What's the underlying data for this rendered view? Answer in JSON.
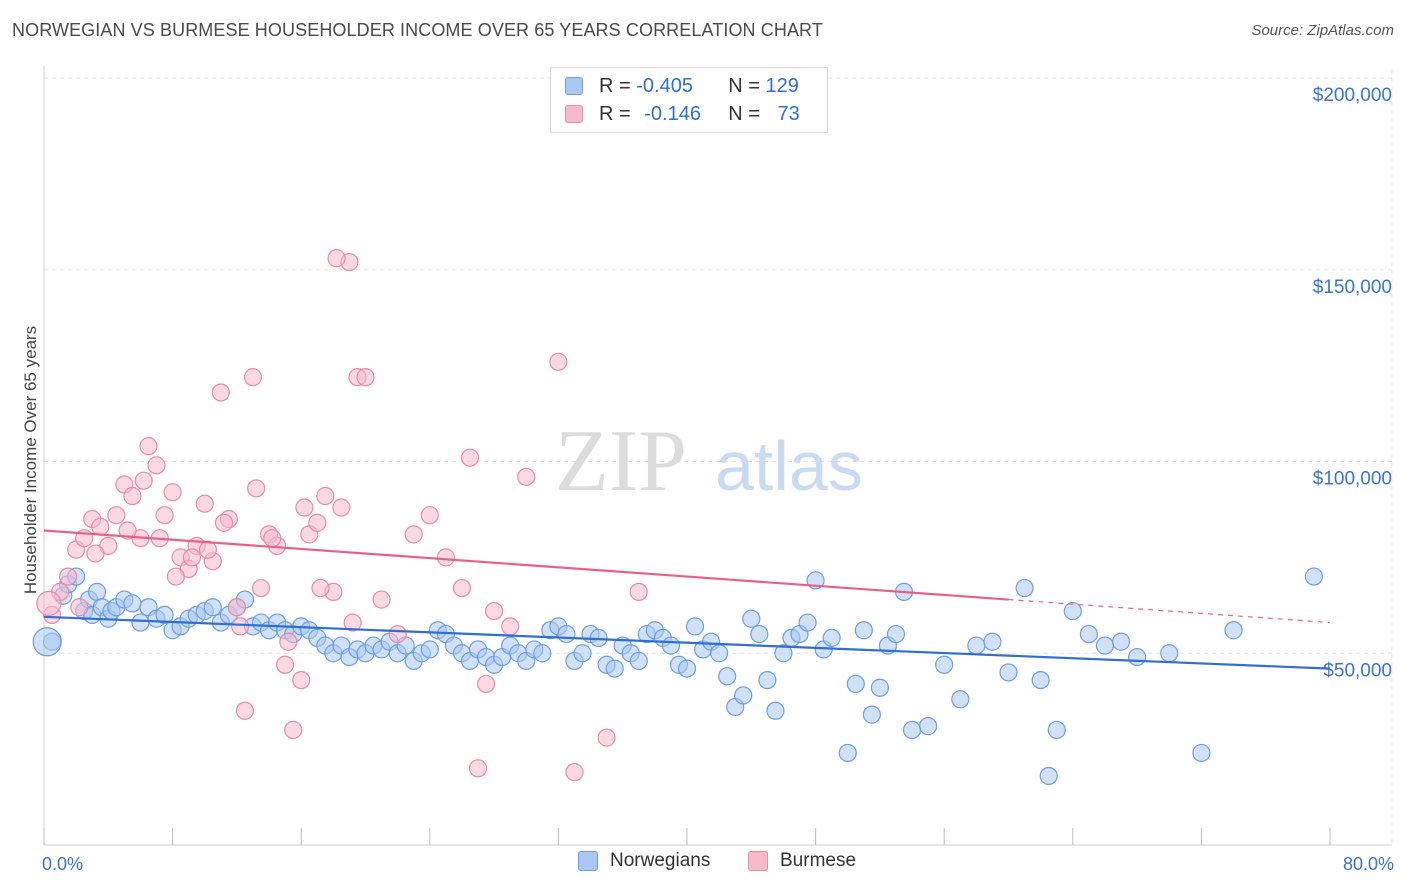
{
  "header": {
    "title": "NORWEGIAN VS BURMESE HOUSEHOLDER INCOME OVER 65 YEARS CORRELATION CHART",
    "source": "Source: ZipAtlas.com"
  },
  "watermark": {
    "zip": "ZIP",
    "atlas": "atlas"
  },
  "legend_top": {
    "rows": [
      {
        "r_label": "R = ",
        "r_value": "-0.405",
        "n_label": "N = ",
        "n_value": "129"
      },
      {
        "r_label": "R = ",
        "r_value": "-0.146",
        "n_label": "N = ",
        "n_value": "73"
      }
    ]
  },
  "legend_bottom": {
    "items": [
      "Norwegians",
      "Burmese"
    ]
  },
  "colors": {
    "blue_fill": "#a9c8f2",
    "blue_stroke": "#6d9fe0",
    "blue_line": "#2f6fd0",
    "pink_fill": "#f7b9cc",
    "pink_stroke": "#e98aa8",
    "pink_line": "#e8608a",
    "axis_text": "#3b73cf",
    "grid": "#e2e2e2"
  },
  "chart_data": {
    "type": "scatter",
    "title": "NORWEGIAN VS BURMESE HOUSEHOLDER INCOME OVER 65 YEARS CORRELATION CHART",
    "xlabel": "",
    "ylabel": "Householder Income Over 65 years",
    "xlim": [
      0,
      80
    ],
    "ylim": [
      0,
      210000
    ],
    "x_tick_labels": [
      "0.0%",
      "80.0%"
    ],
    "y_ticks": [
      50000,
      100000,
      150000,
      200000
    ],
    "y_tick_labels": [
      "$50,000",
      "$100,000",
      "$150,000",
      "$200,000"
    ],
    "grid": true,
    "legend_position": "top-center",
    "series": [
      {
        "name": "Norwegians",
        "color": "#6d9fe0",
        "trend": {
          "x": [
            0,
            80
          ],
          "y": [
            59500,
            46000
          ]
        },
        "points": [
          [
            0.5,
            53000
          ],
          [
            1.2,
            65000
          ],
          [
            1.5,
            68000
          ],
          [
            2.0,
            70000
          ],
          [
            2.5,
            61000
          ],
          [
            2.8,
            64000
          ],
          [
            3.0,
            60000
          ],
          [
            3.3,
            66000
          ],
          [
            3.6,
            62000
          ],
          [
            4.0,
            59000
          ],
          [
            4.2,
            61000
          ],
          [
            4.5,
            62000
          ],
          [
            5.0,
            64000
          ],
          [
            5.5,
            63000
          ],
          [
            6.0,
            58000
          ],
          [
            6.5,
            62000
          ],
          [
            7.0,
            59000
          ],
          [
            7.5,
            60000
          ],
          [
            8.0,
            56000
          ],
          [
            8.5,
            57000
          ],
          [
            9.0,
            59000
          ],
          [
            9.5,
            60000
          ],
          [
            10.0,
            61000
          ],
          [
            10.5,
            62000
          ],
          [
            11.0,
            58000
          ],
          [
            11.5,
            60000
          ],
          [
            12.0,
            62000
          ],
          [
            12.5,
            64000
          ],
          [
            13.0,
            57000
          ],
          [
            13.5,
            58000
          ],
          [
            14.0,
            56000
          ],
          [
            14.5,
            58000
          ],
          [
            15.0,
            56000
          ],
          [
            15.5,
            55000
          ],
          [
            16.0,
            57000
          ],
          [
            16.5,
            56000
          ],
          [
            17.0,
            54000
          ],
          [
            17.5,
            52000
          ],
          [
            18.0,
            50000
          ],
          [
            18.5,
            52000
          ],
          [
            19.0,
            49000
          ],
          [
            19.5,
            51000
          ],
          [
            20.0,
            50000
          ],
          [
            20.5,
            52000
          ],
          [
            21.0,
            51000
          ],
          [
            21.5,
            53000
          ],
          [
            22.0,
            50000
          ],
          [
            22.5,
            52000
          ],
          [
            23.0,
            48000
          ],
          [
            23.5,
            50000
          ],
          [
            24.0,
            51000
          ],
          [
            24.5,
            56000
          ],
          [
            25.0,
            55000
          ],
          [
            25.5,
            52000
          ],
          [
            26.0,
            50000
          ],
          [
            26.5,
            48000
          ],
          [
            27.0,
            51000
          ],
          [
            27.5,
            49000
          ],
          [
            28.0,
            47000
          ],
          [
            28.5,
            49000
          ],
          [
            29.0,
            52000
          ],
          [
            29.5,
            50000
          ],
          [
            30.0,
            48000
          ],
          [
            30.5,
            51000
          ],
          [
            31.0,
            50000
          ],
          [
            31.5,
            56000
          ],
          [
            32.0,
            57000
          ],
          [
            32.5,
            55000
          ],
          [
            33.0,
            48000
          ],
          [
            33.5,
            50000
          ],
          [
            34.0,
            55000
          ],
          [
            34.5,
            54000
          ],
          [
            35.0,
            47000
          ],
          [
            35.5,
            46000
          ],
          [
            36.0,
            52000
          ],
          [
            36.5,
            50000
          ],
          [
            37.0,
            48000
          ],
          [
            37.5,
            55000
          ],
          [
            38.0,
            56000
          ],
          [
            38.5,
            54000
          ],
          [
            39.0,
            52000
          ],
          [
            39.5,
            47000
          ],
          [
            40.0,
            46000
          ],
          [
            40.5,
            57000
          ],
          [
            41.0,
            51000
          ],
          [
            41.5,
            53000
          ],
          [
            42.0,
            50000
          ],
          [
            42.5,
            44000
          ],
          [
            43.0,
            36000
          ],
          [
            43.5,
            39000
          ],
          [
            44.0,
            59000
          ],
          [
            44.5,
            55000
          ],
          [
            45.0,
            43000
          ],
          [
            45.5,
            35000
          ],
          [
            46.0,
            50000
          ],
          [
            46.5,
            54000
          ],
          [
            47.0,
            55000
          ],
          [
            47.5,
            58000
          ],
          [
            48.0,
            69000
          ],
          [
            48.5,
            51000
          ],
          [
            49.0,
            54000
          ],
          [
            50.0,
            24000
          ],
          [
            50.5,
            42000
          ],
          [
            51.0,
            56000
          ],
          [
            51.5,
            34000
          ],
          [
            52.0,
            41000
          ],
          [
            52.5,
            52000
          ],
          [
            53.0,
            55000
          ],
          [
            53.5,
            66000
          ],
          [
            54.0,
            30000
          ],
          [
            55.0,
            31000
          ],
          [
            56.0,
            47000
          ],
          [
            57.0,
            38000
          ],
          [
            58.0,
            52000
          ],
          [
            59.0,
            53000
          ],
          [
            60.0,
            45000
          ],
          [
            61.0,
            67000
          ],
          [
            62.0,
            43000
          ],
          [
            62.5,
            18000
          ],
          [
            63.0,
            30000
          ],
          [
            64.0,
            61000
          ],
          [
            65.0,
            55000
          ],
          [
            66.0,
            52000
          ],
          [
            67.0,
            53000
          ],
          [
            68.0,
            49000
          ],
          [
            70.0,
            50000
          ],
          [
            72.0,
            24000
          ],
          [
            74.0,
            56000
          ],
          [
            79.0,
            70000
          ]
        ]
      },
      {
        "name": "Burmese",
        "color": "#e98aa8",
        "trend": {
          "x": [
            0,
            60
          ],
          "y": [
            82000,
            64000
          ]
        },
        "trend_dashed": {
          "x": [
            60,
            80
          ],
          "y": [
            64000,
            58000
          ]
        },
        "points": [
          [
            0.5,
            60000
          ],
          [
            1.0,
            66000
          ],
          [
            1.5,
            70000
          ],
          [
            2.0,
            77000
          ],
          [
            2.5,
            80000
          ],
          [
            3.0,
            85000
          ],
          [
            3.5,
            83000
          ],
          [
            4.0,
            78000
          ],
          [
            4.5,
            86000
          ],
          [
            5.0,
            94000
          ],
          [
            5.5,
            91000
          ],
          [
            6.0,
            80000
          ],
          [
            6.5,
            104000
          ],
          [
            7.0,
            99000
          ],
          [
            7.5,
            86000
          ],
          [
            8.0,
            92000
          ],
          [
            8.5,
            75000
          ],
          [
            9.0,
            72000
          ],
          [
            9.5,
            78000
          ],
          [
            10.0,
            89000
          ],
          [
            10.5,
            74000
          ],
          [
            11.0,
            118000
          ],
          [
            11.5,
            85000
          ],
          [
            12.0,
            62000
          ],
          [
            12.5,
            35000
          ],
          [
            13.0,
            122000
          ],
          [
            13.5,
            67000
          ],
          [
            14.0,
            81000
          ],
          [
            14.5,
            78000
          ],
          [
            15.0,
            47000
          ],
          [
            15.5,
            30000
          ],
          [
            16.0,
            43000
          ],
          [
            16.5,
            81000
          ],
          [
            17.0,
            84000
          ],
          [
            17.5,
            91000
          ],
          [
            18.0,
            66000
          ],
          [
            18.5,
            88000
          ],
          [
            19.0,
            152000
          ],
          [
            19.5,
            122000
          ],
          [
            20.0,
            122000
          ],
          [
            21.0,
            64000
          ],
          [
            22.0,
            55000
          ],
          [
            23.0,
            81000
          ],
          [
            24.0,
            86000
          ],
          [
            25.0,
            75000
          ],
          [
            26.0,
            67000
          ],
          [
            26.5,
            101000
          ],
          [
            27.0,
            20000
          ],
          [
            27.5,
            42000
          ],
          [
            28.0,
            61000
          ],
          [
            29.0,
            57000
          ],
          [
            30.0,
            96000
          ],
          [
            32.0,
            126000
          ],
          [
            33.0,
            19000
          ],
          [
            35.0,
            28000
          ],
          [
            37.0,
            66000
          ],
          [
            2.2,
            62000
          ],
          [
            3.2,
            76000
          ],
          [
            5.2,
            82000
          ],
          [
            6.2,
            95000
          ],
          [
            7.2,
            80000
          ],
          [
            8.2,
            70000
          ],
          [
            9.2,
            75000
          ],
          [
            10.2,
            77000
          ],
          [
            11.2,
            84000
          ],
          [
            12.2,
            57000
          ],
          [
            13.2,
            93000
          ],
          [
            14.2,
            80000
          ],
          [
            15.2,
            53000
          ],
          [
            16.2,
            88000
          ],
          [
            17.2,
            67000
          ],
          [
            18.2,
            153000
          ],
          [
            19.2,
            58000
          ]
        ]
      }
    ]
  }
}
